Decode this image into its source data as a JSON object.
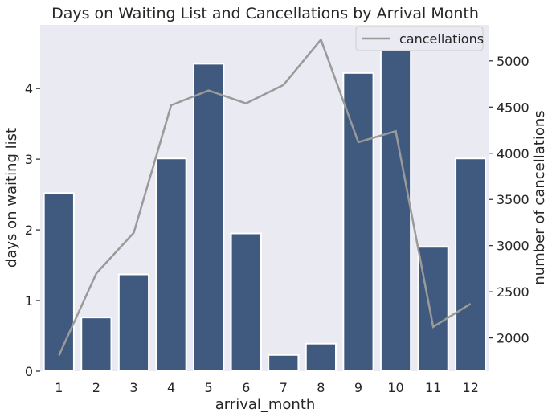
{
  "chart_data": {
    "type": "bar",
    "title": "Days on Waiting List and Cancellations by Arrival Month",
    "xlabel": "arrival_month",
    "ylabel": "days on waiting list",
    "y2label": "number of cancellations",
    "categories": [
      "1",
      "2",
      "3",
      "4",
      "5",
      "6",
      "7",
      "8",
      "9",
      "10",
      "11",
      "12"
    ],
    "series": [
      {
        "kind": "bar",
        "axis": "left",
        "values": [
          2.52,
          0.76,
          1.37,
          3.01,
          4.35,
          1.95,
          0.23,
          0.39,
          4.22,
          4.61,
          1.76,
          3.01
        ],
        "color": "#3f5a7e"
      },
      {
        "kind": "line",
        "axis": "right",
        "name": "cancellations",
        "values": [
          1810,
          2700,
          3140,
          4520,
          4680,
          4540,
          4740,
          5230,
          4120,
          4240,
          2120,
          2370
        ],
        "color": "#9a9a9a"
      }
    ],
    "ylim": [
      0,
      4.9
    ],
    "y2lim": [
      1640,
      5390
    ],
    "yticks": [
      "0",
      "1",
      "2",
      "3",
      "4"
    ],
    "y2ticks": [
      "2000",
      "2500",
      "3000",
      "3500",
      "4000",
      "4500",
      "5000"
    ],
    "grid": false,
    "legend": "top-right",
    "background": "#eaeaf2"
  }
}
